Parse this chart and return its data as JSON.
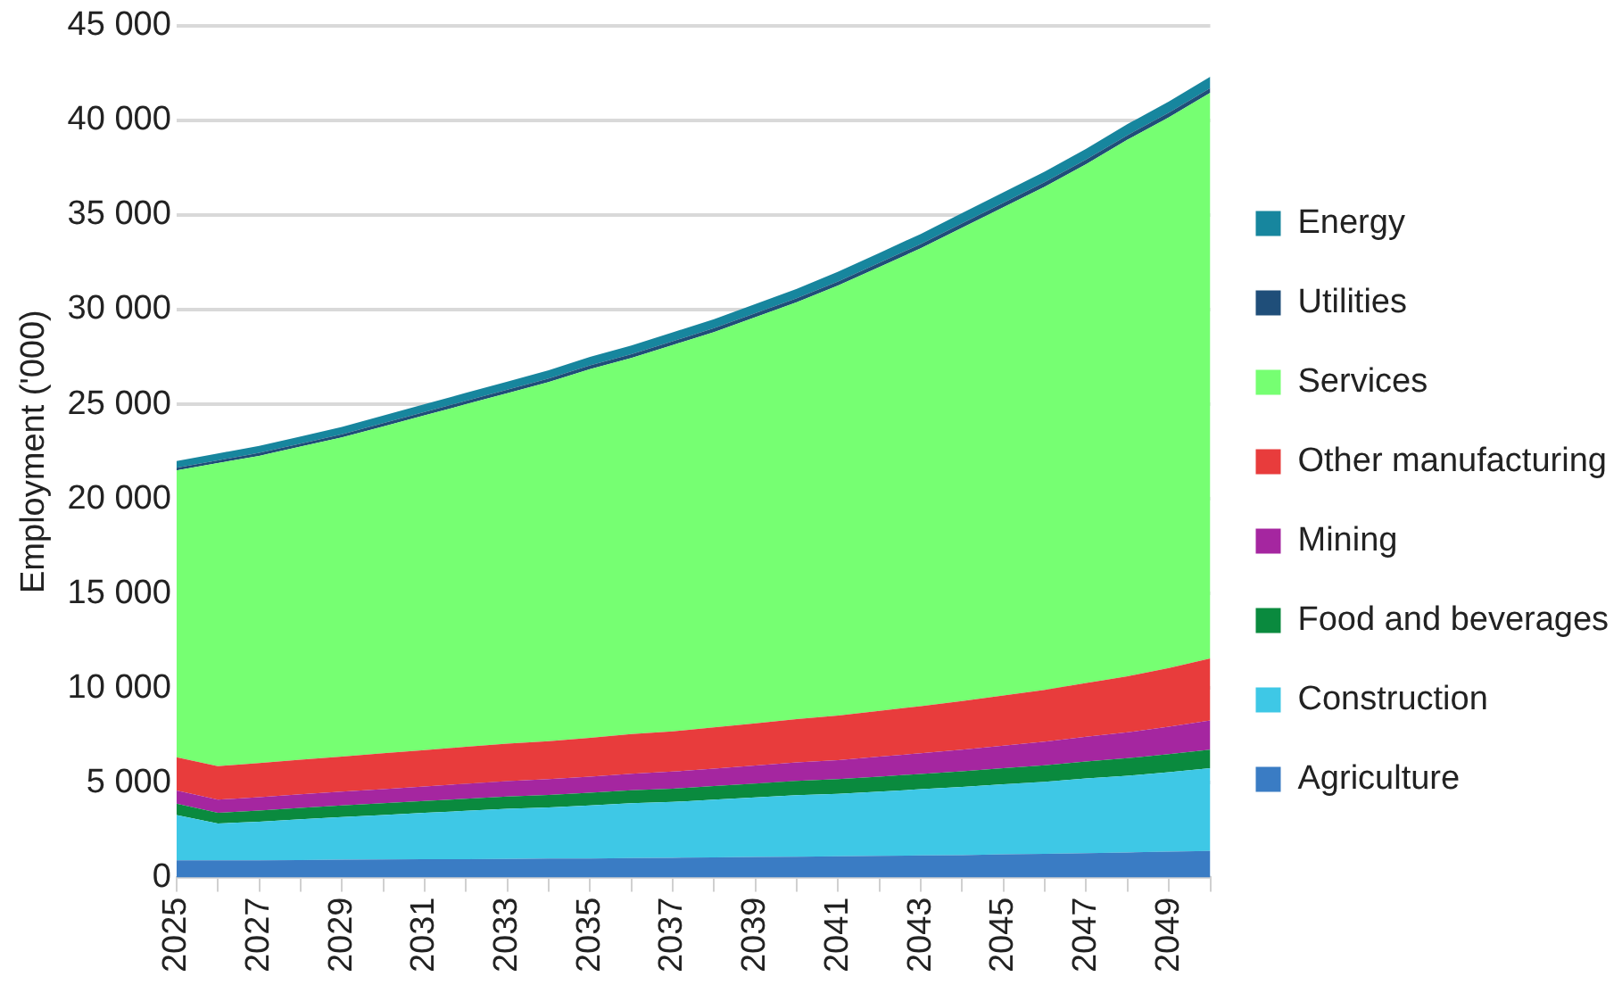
{
  "chart_data": {
    "type": "area",
    "stacked": true,
    "ylabel": "Employment ('000)",
    "categories": [
      "2025",
      null,
      "2027",
      null,
      "2029",
      null,
      "2031",
      null,
      "2033",
      null,
      "2035",
      null,
      "2037",
      null,
      "2039",
      null,
      "2041",
      null,
      "2043",
      null,
      "2045",
      null,
      "2047",
      null,
      "2049",
      null
    ],
    "ylim": [
      0,
      45000
    ],
    "yticks": [
      0,
      {
        "value": 5000,
        "label": "5 000"
      },
      {
        "value": 10000,
        "label": "10 000"
      },
      {
        "value": 15000,
        "label": "15 000"
      },
      {
        "value": 20000,
        "label": "20 000"
      },
      {
        "value": 25000,
        "label": "25 000"
      },
      {
        "value": 30000,
        "label": "30 000"
      },
      {
        "value": 35000,
        "label": "35 000"
      },
      {
        "value": 40000,
        "label": "40 000"
      },
      {
        "value": 45000,
        "label": "45 000"
      }
    ],
    "grid": "y",
    "legend": "right",
    "series": [
      {
        "name": "Agriculture",
        "color": "#3a7cc4",
        "values": [
          900,
          900,
          900,
          920,
          940,
          950,
          960,
          970,
          980,
          1000,
          1000,
          1020,
          1040,
          1060,
          1080,
          1100,
          1120,
          1140,
          1160,
          1180,
          1220,
          1250,
          1280,
          1320,
          1360,
          1400
        ]
      },
      {
        "name": "Construction",
        "color": "#3ec8e6",
        "values": [
          2400,
          1950,
          2050,
          2150,
          2250,
          2350,
          2450,
          2550,
          2650,
          2700,
          2800,
          2900,
          2950,
          3050,
          3150,
          3250,
          3300,
          3400,
          3500,
          3600,
          3700,
          3800,
          3950,
          4050,
          4200,
          4370
        ]
      },
      {
        "name": "Food and beverages",
        "color": "#0a8a3e",
        "values": [
          600,
          560,
          580,
          600,
          610,
          620,
          630,
          640,
          650,
          660,
          680,
          690,
          700,
          720,
          730,
          750,
          770,
          790,
          810,
          830,
          850,
          880,
          900,
          930,
          950,
          980
        ]
      },
      {
        "name": "Mining",
        "color": "#a526a0",
        "values": [
          700,
          700,
          710,
          720,
          730,
          750,
          770,
          790,
          810,
          830,
          850,
          870,
          900,
          920,
          950,
          980,
          1010,
          1050,
          1090,
          1140,
          1190,
          1240,
          1300,
          1370,
          1450,
          1540
        ]
      },
      {
        "name": "Other manufacturing",
        "color": "#e83c3c",
        "values": [
          1750,
          1770,
          1800,
          1830,
          1860,
          1890,
          1920,
          1950,
          1980,
          2010,
          2050,
          2090,
          2130,
          2180,
          2230,
          2290,
          2350,
          2420,
          2490,
          2570,
          2650,
          2740,
          2840,
          2960,
          3100,
          3280
        ]
      },
      {
        "name": "Services",
        "color": "#76ff72",
        "values": [
          15150,
          16010,
          16235,
          16540,
          16855,
          17270,
          17685,
          18100,
          18515,
          18970,
          19475,
          19870,
          20410,
          20885,
          21460,
          22015,
          22720,
          23455,
          24190,
          25005,
          25800,
          26590,
          27415,
          28345,
          29100,
          29880
        ]
      },
      {
        "name": "Utilities",
        "color": "#1f4e79",
        "values": [
          150,
          150,
          155,
          160,
          165,
          170,
          175,
          180,
          185,
          190,
          195,
          200,
          200,
          205,
          210,
          215,
          220,
          225,
          230,
          235,
          240,
          240,
          245,
          245,
          250,
          250
        ]
      },
      {
        "name": "Energy",
        "color": "#17869e",
        "values": [
          350,
          360,
          370,
          380,
          390,
          400,
          410,
          420,
          430,
          440,
          450,
          460,
          470,
          480,
          490,
          500,
          510,
          520,
          530,
          540,
          550,
          560,
          570,
          580,
          590,
          600
        ]
      }
    ]
  }
}
